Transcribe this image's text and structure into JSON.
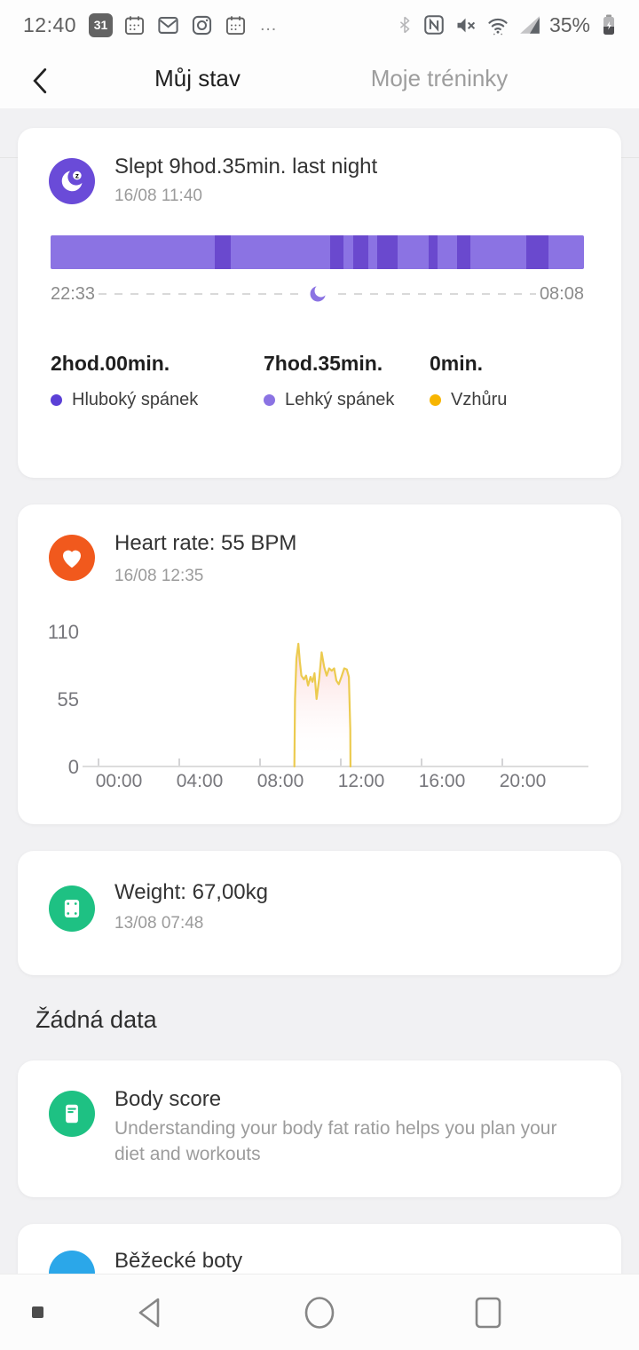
{
  "status_bar": {
    "time": "12:40",
    "calendar_day": "31",
    "overflow": "…",
    "battery_pct": "35%",
    "left_icons": [
      "calendar-31",
      "calendar",
      "gmail",
      "instagram",
      "calendar",
      "overflow"
    ],
    "right_icons": [
      "bluetooth",
      "nfc",
      "mute",
      "wifi",
      "signal",
      "battery"
    ]
  },
  "header": {
    "accent_color": "#E8611C",
    "tabs": [
      {
        "label": "Můj stav",
        "active": true
      },
      {
        "label": "Moje tréninky",
        "active": false
      }
    ]
  },
  "cards": {
    "sleep": {
      "title": "Slept 9hod.35min. last night",
      "timestamp": "16/08 11:40",
      "start_time": "22:33",
      "end_time": "08:08",
      "stats": [
        {
          "value": "2hod.00min.",
          "label": "Hluboký spánek",
          "color": "#5B40D6"
        },
        {
          "value": "7hod.35min.",
          "label": "Lehký spánek",
          "color": "#8B73E3"
        },
        {
          "value": "0min.",
          "label": "Vzhůru",
          "color": "#F7B500"
        }
      ],
      "icon_bg": "#6A4BD8"
    },
    "heart": {
      "title": "Heart rate: 55 BPM",
      "timestamp": "16/08 12:35",
      "icon_bg": "#F1591D"
    },
    "weight": {
      "title": "Weight: 67,00kg",
      "timestamp": "13/08 07:48",
      "icon_bg": "#1EC183"
    },
    "no_data_header": "Žádná data",
    "body_score": {
      "title": "Body score",
      "description": "Understanding your body fat ratio helps you plan your diet and workouts",
      "icon_bg": "#1EC183"
    },
    "shoes": {
      "title": "Běžecké boty",
      "icon_bg": "#2BA7E9"
    }
  },
  "chart_data": [
    {
      "type": "timeline-bar",
      "title": "Sleep stages last night",
      "start": "22:33",
      "end": "08:08",
      "total": "9hod.35min.",
      "light_color": "#8B73E3",
      "deep_color": "#6A49CE",
      "deep_segments_pct": [
        [
          30.8,
          3.0
        ],
        [
          52.4,
          2.5
        ],
        [
          56.7,
          2.8
        ],
        [
          61.2,
          3.8
        ],
        [
          70.9,
          1.7
        ],
        [
          76.2,
          2.5
        ],
        [
          89.2,
          4.2
        ]
      ],
      "totals": {
        "deep": "2hod.00min.",
        "light": "7hod.35min.",
        "awake": "0min."
      }
    },
    {
      "type": "area",
      "title": "Heart rate (BPM) on 16/08",
      "x_unit": "hour_of_day",
      "x_range_hours": [
        0,
        24
      ],
      "yticks": [
        0,
        55,
        110
      ],
      "ylim": [
        0,
        119
      ],
      "xticks": [
        0,
        4,
        8,
        12,
        16,
        20
      ],
      "xtick_labels": [
        "00:00",
        "04:00",
        "08:00",
        "12:00",
        "16:00",
        "20:00"
      ],
      "grid": false,
      "line_color": "#ECCB50",
      "fill_top_color": "rgba(248,168,168,0.5)",
      "axis_color": "#DCDCDC",
      "tick_label_color": "#77777C",
      "series": [
        {
          "name": "Heart rate",
          "points": [
            [
              9.7,
              0
            ],
            [
              9.73,
              55
            ],
            [
              9.8,
              88
            ],
            [
              9.9,
              100
            ],
            [
              9.97,
              86
            ],
            [
              10.05,
              74
            ],
            [
              10.17,
              71
            ],
            [
              10.28,
              74
            ],
            [
              10.38,
              66
            ],
            [
              10.5,
              73
            ],
            [
              10.6,
              69
            ],
            [
              10.7,
              76
            ],
            [
              10.8,
              55
            ],
            [
              10.93,
              72
            ],
            [
              11.05,
              93
            ],
            [
              11.18,
              81
            ],
            [
              11.3,
              74
            ],
            [
              11.42,
              80
            ],
            [
              11.55,
              78
            ],
            [
              11.67,
              80
            ],
            [
              11.78,
              70
            ],
            [
              11.9,
              67
            ],
            [
              12.03,
              73
            ],
            [
              12.17,
              80
            ],
            [
              12.3,
              79
            ],
            [
              12.4,
              73
            ],
            [
              12.47,
              30
            ],
            [
              12.48,
              0
            ]
          ]
        }
      ]
    }
  ]
}
